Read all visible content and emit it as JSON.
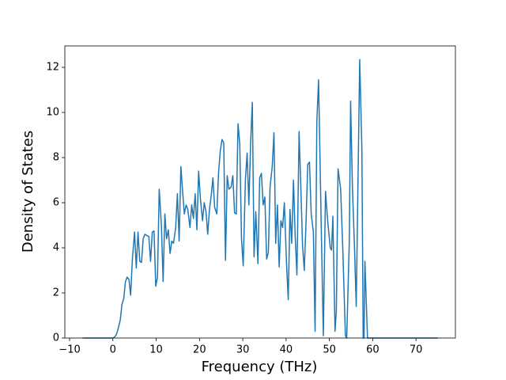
{
  "chart_data": {
    "type": "line",
    "xlabel": "Frequency (THz)",
    "ylabel": "Density of States",
    "x": [
      -7,
      0,
      0.4,
      0.8,
      1.2,
      1.7,
      2.1,
      2.5,
      2.9,
      3.3,
      3.7,
      4.1,
      4.5,
      5.0,
      5.4,
      5.8,
      6.2,
      6.6,
      7.0,
      7.4,
      7.8,
      8.3,
      8.7,
      9.1,
      9.5,
      9.9,
      10.3,
      10.7,
      11.2,
      11.6,
      12.0,
      12.4,
      12.8,
      13.2,
      13.6,
      14.0,
      14.5,
      14.9,
      15.3,
      15.7,
      16.1,
      16.5,
      16.9,
      17.3,
      17.8,
      18.2,
      18.6,
      19.0,
      19.4,
      19.8,
      20.2,
      20.7,
      21.1,
      21.5,
      21.9,
      22.3,
      22.7,
      23.1,
      23.5,
      24.0,
      24.4,
      24.8,
      25.2,
      25.6,
      26.0,
      26.4,
      26.8,
      27.3,
      27.7,
      28.1,
      28.5,
      28.9,
      29.3,
      29.7,
      30.1,
      30.6,
      31.0,
      31.4,
      31.8,
      32.2,
      32.6,
      33.0,
      33.5,
      33.9,
      34.3,
      34.7,
      35.1,
      35.5,
      35.9,
      36.3,
      36.8,
      37.2,
      37.6,
      38.0,
      38.4,
      38.8,
      39.2,
      39.6,
      40.1,
      40.5,
      40.9,
      41.3,
      41.7,
      42.1,
      42.5,
      43.0,
      43.4,
      43.8,
      44.2,
      44.6,
      45.0,
      45.4,
      45.8,
      46.3,
      46.7,
      47.1,
      47.5,
      48.1,
      48.6,
      49.1,
      49.6,
      50.2,
      50.5,
      50.8,
      51.3,
      51.6,
      52.0,
      52.6,
      53.1,
      53.7,
      54.0,
      54.6,
      54.9,
      55.3,
      55.8,
      56.2,
      57.0,
      57.5,
      57.8,
      58.0,
      58.2,
      58.8,
      75
    ],
    "series": [
      {
        "color": "#1f77b4",
        "values": [
          0,
          0,
          0.05,
          0.15,
          0.4,
          0.8,
          1.5,
          1.75,
          2.5,
          2.7,
          2.6,
          1.9,
          3.5,
          4.7,
          3.1,
          4.7,
          3.4,
          3.35,
          4.4,
          4.6,
          4.55,
          4.5,
          3.4,
          4.7,
          4.75,
          2.3,
          2.7,
          6.6,
          5.0,
          2.5,
          5.5,
          4.4,
          4.8,
          3.75,
          4.3,
          4.2,
          4.9,
          6.4,
          4.3,
          7.6,
          6.5,
          5.5,
          5.9,
          5.7,
          4.9,
          5.9,
          5.3,
          6.4,
          4.8,
          7.4,
          6.2,
          5.2,
          6.0,
          5.6,
          4.6,
          5.7,
          6.3,
          7.1,
          5.8,
          5.5,
          7.3,
          8.3,
          8.8,
          8.65,
          3.45,
          7.2,
          6.6,
          6.7,
          7.2,
          5.55,
          5.5,
          9.5,
          8.6,
          4.4,
          3.2,
          7.0,
          8.2,
          5.9,
          8.6,
          10.45,
          3.6,
          5.6,
          3.3,
          7.1,
          7.3,
          5.9,
          6.25,
          3.5,
          3.8,
          6.7,
          7.6,
          9.1,
          4.2,
          5.9,
          3.15,
          5.2,
          4.9,
          6.0,
          3.3,
          1.7,
          5.7,
          4.2,
          7.0,
          4.5,
          2.8,
          9.15,
          6.7,
          4.1,
          3.0,
          5.1,
          7.7,
          7.8,
          5.5,
          4.7,
          0.3,
          9.6,
          11.45,
          5.1,
          0.1,
          6.5,
          5.2,
          4.0,
          3.9,
          5.4,
          0.3,
          1.2,
          7.5,
          6.6,
          3.9,
          0.1,
          0,
          4.3,
          10.5,
          6.8,
          4.0,
          1.4,
          12.35,
          8.4,
          0,
          0,
          3.4,
          0,
          0
        ]
      }
    ],
    "xlim": [
      -11.1,
      79.1
    ],
    "ylim": [
      0,
      12.95
    ],
    "xticks": [
      {
        "value": -10,
        "label": "−10"
      },
      0,
      10,
      20,
      30,
      40,
      50,
      60,
      70
    ],
    "yticks": [
      0,
      2,
      4,
      6,
      8,
      10,
      12
    ],
    "grid": false
  }
}
